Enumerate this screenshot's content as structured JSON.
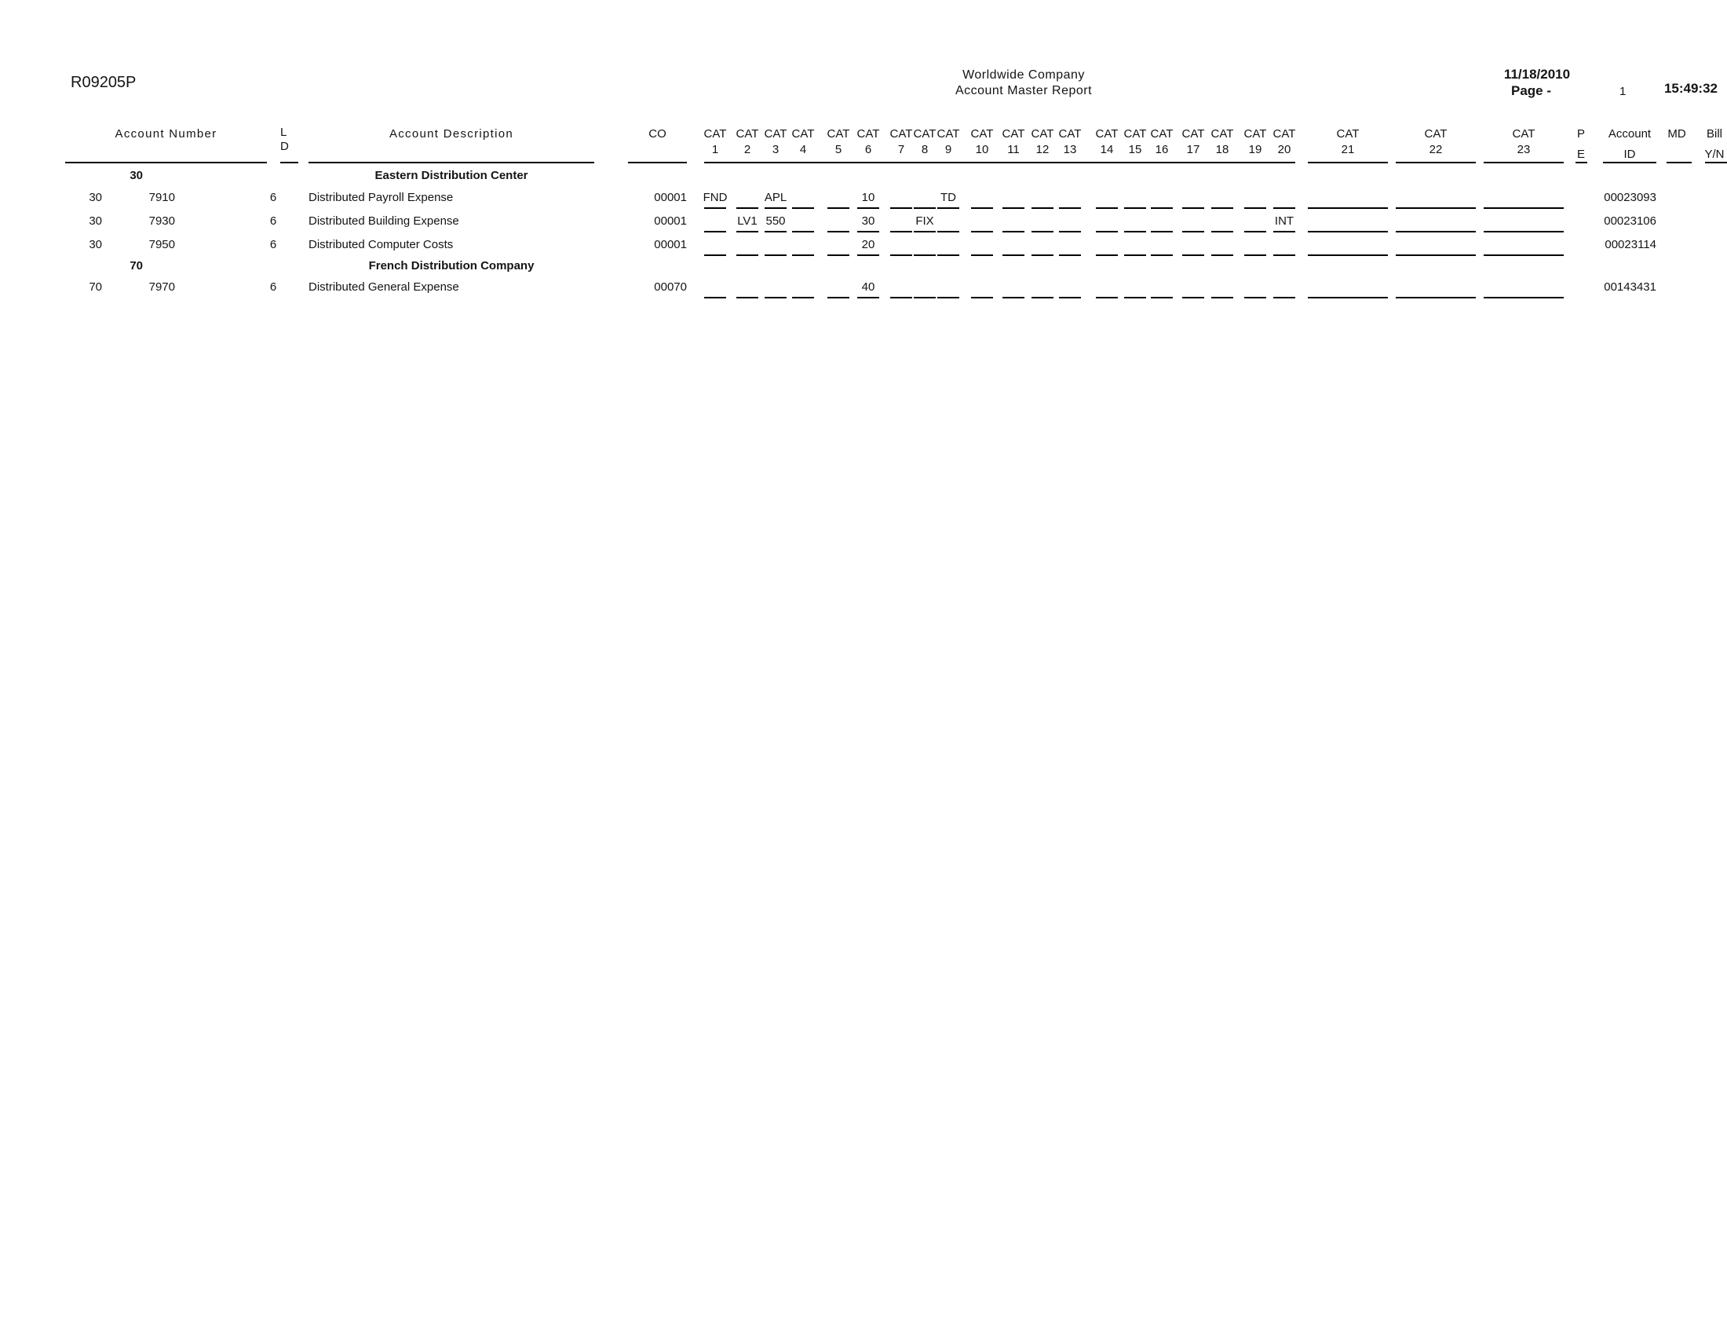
{
  "report": {
    "id": "R09205P",
    "company": "Worldwide Company",
    "title": "Account Master Report",
    "date": "11/18/2010",
    "page_label": "Page -",
    "page_number": "1",
    "time": "15:49:32"
  },
  "columns": {
    "account_number": "Account Number",
    "ld_line1": "L",
    "ld_line2": "D",
    "account_description": "Account Description",
    "co": "CO",
    "cat": "CAT",
    "cat_numbers": [
      "1",
      "2",
      "3",
      "4",
      "5",
      "6",
      "7",
      "8",
      "9",
      "10",
      "11",
      "12",
      "13",
      "14",
      "15",
      "16",
      "17",
      "18",
      "19",
      "20",
      "21",
      "22",
      "23"
    ],
    "pe_line1": "P",
    "pe_line2": "E",
    "account_id_line1": "Account",
    "account_id_line2": "ID",
    "md": "MD",
    "bill_line1": "Bill",
    "bill_line2": "Y/N"
  },
  "rows": [
    {
      "type": "group",
      "bu": "30",
      "description": "Eastern Distribution Center"
    },
    {
      "type": "detail",
      "bu": "30",
      "obj": "7910",
      "ld": "6",
      "description": "Distributed Payroll Expense",
      "co": "00001",
      "cats": {
        "1": "FND",
        "3": "APL",
        "6": "10",
        "9": "TD"
      },
      "account_id": "00023093"
    },
    {
      "type": "detail",
      "bu": "30",
      "obj": "7930",
      "ld": "6",
      "description": "Distributed Building Expense",
      "co": "00001",
      "cats": {
        "2": "LV1",
        "3": "550",
        "6": "30",
        "8": "FIX",
        "20": "INT"
      },
      "account_id": "00023106"
    },
    {
      "type": "detail",
      "bu": "30",
      "obj": "7950",
      "ld": "6",
      "description": "Distributed Computer Costs",
      "co": "00001",
      "cats": {
        "6": "20"
      },
      "account_id": "00023114"
    },
    {
      "type": "group",
      "bu": "70",
      "description": "French Distribution Company"
    },
    {
      "type": "detail",
      "bu": "70",
      "obj": "7970",
      "ld": "6",
      "description": "Distributed General Expense",
      "co": "00070",
      "cats": {
        "6": "40"
      },
      "account_id": "00143431"
    }
  ]
}
